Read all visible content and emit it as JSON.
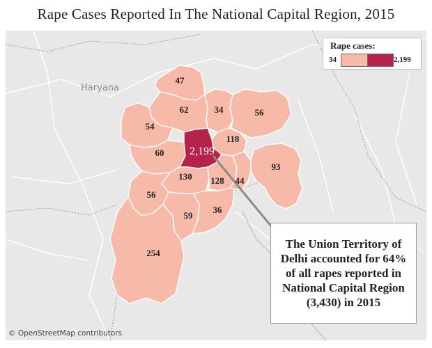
{
  "title": "Rape Cases Reported In The National Capital Region, 2015",
  "legend": {
    "title": "Rape cases:",
    "min_label": "34",
    "max_label": "2,199",
    "min_color": "#f7b9a8",
    "max_color": "#b5234a"
  },
  "place_labels": {
    "haryana": "Haryana"
  },
  "regions": [
    {
      "id": "r47",
      "label": "47",
      "value": 47
    },
    {
      "id": "r62",
      "label": "62",
      "value": 62
    },
    {
      "id": "r34",
      "label": "34",
      "value": 34
    },
    {
      "id": "r56ne",
      "label": "56",
      "value": 56
    },
    {
      "id": "r54",
      "label": "54",
      "value": 54
    },
    {
      "id": "r118",
      "label": "118",
      "value": 118
    },
    {
      "id": "r60",
      "label": "60",
      "value": 60
    },
    {
      "id": "rdelhi",
      "label": "2,199",
      "value": 2199
    },
    {
      "id": "r93",
      "label": "93",
      "value": 93
    },
    {
      "id": "r130",
      "label": "130",
      "value": 130
    },
    {
      "id": "r128",
      "label": "128",
      "value": 128
    },
    {
      "id": "r44",
      "label": "44",
      "value": 44
    },
    {
      "id": "r56w",
      "label": "56",
      "value": 56
    },
    {
      "id": "r59",
      "label": "59",
      "value": 59
    },
    {
      "id": "r36",
      "label": "36",
      "value": 36
    },
    {
      "id": "r254",
      "label": "254",
      "value": 254
    }
  ],
  "callout": {
    "text": "The Union Territory of Delhi accounted for 64% of all rapes reported in National Capital Region (3,430) in 2015"
  },
  "attribution": "© OpenStreetMap contributors",
  "colors": {
    "region_fill": "#f7b9a8",
    "delhi_fill": "#b5234a",
    "background": "#e8e8e8"
  }
}
